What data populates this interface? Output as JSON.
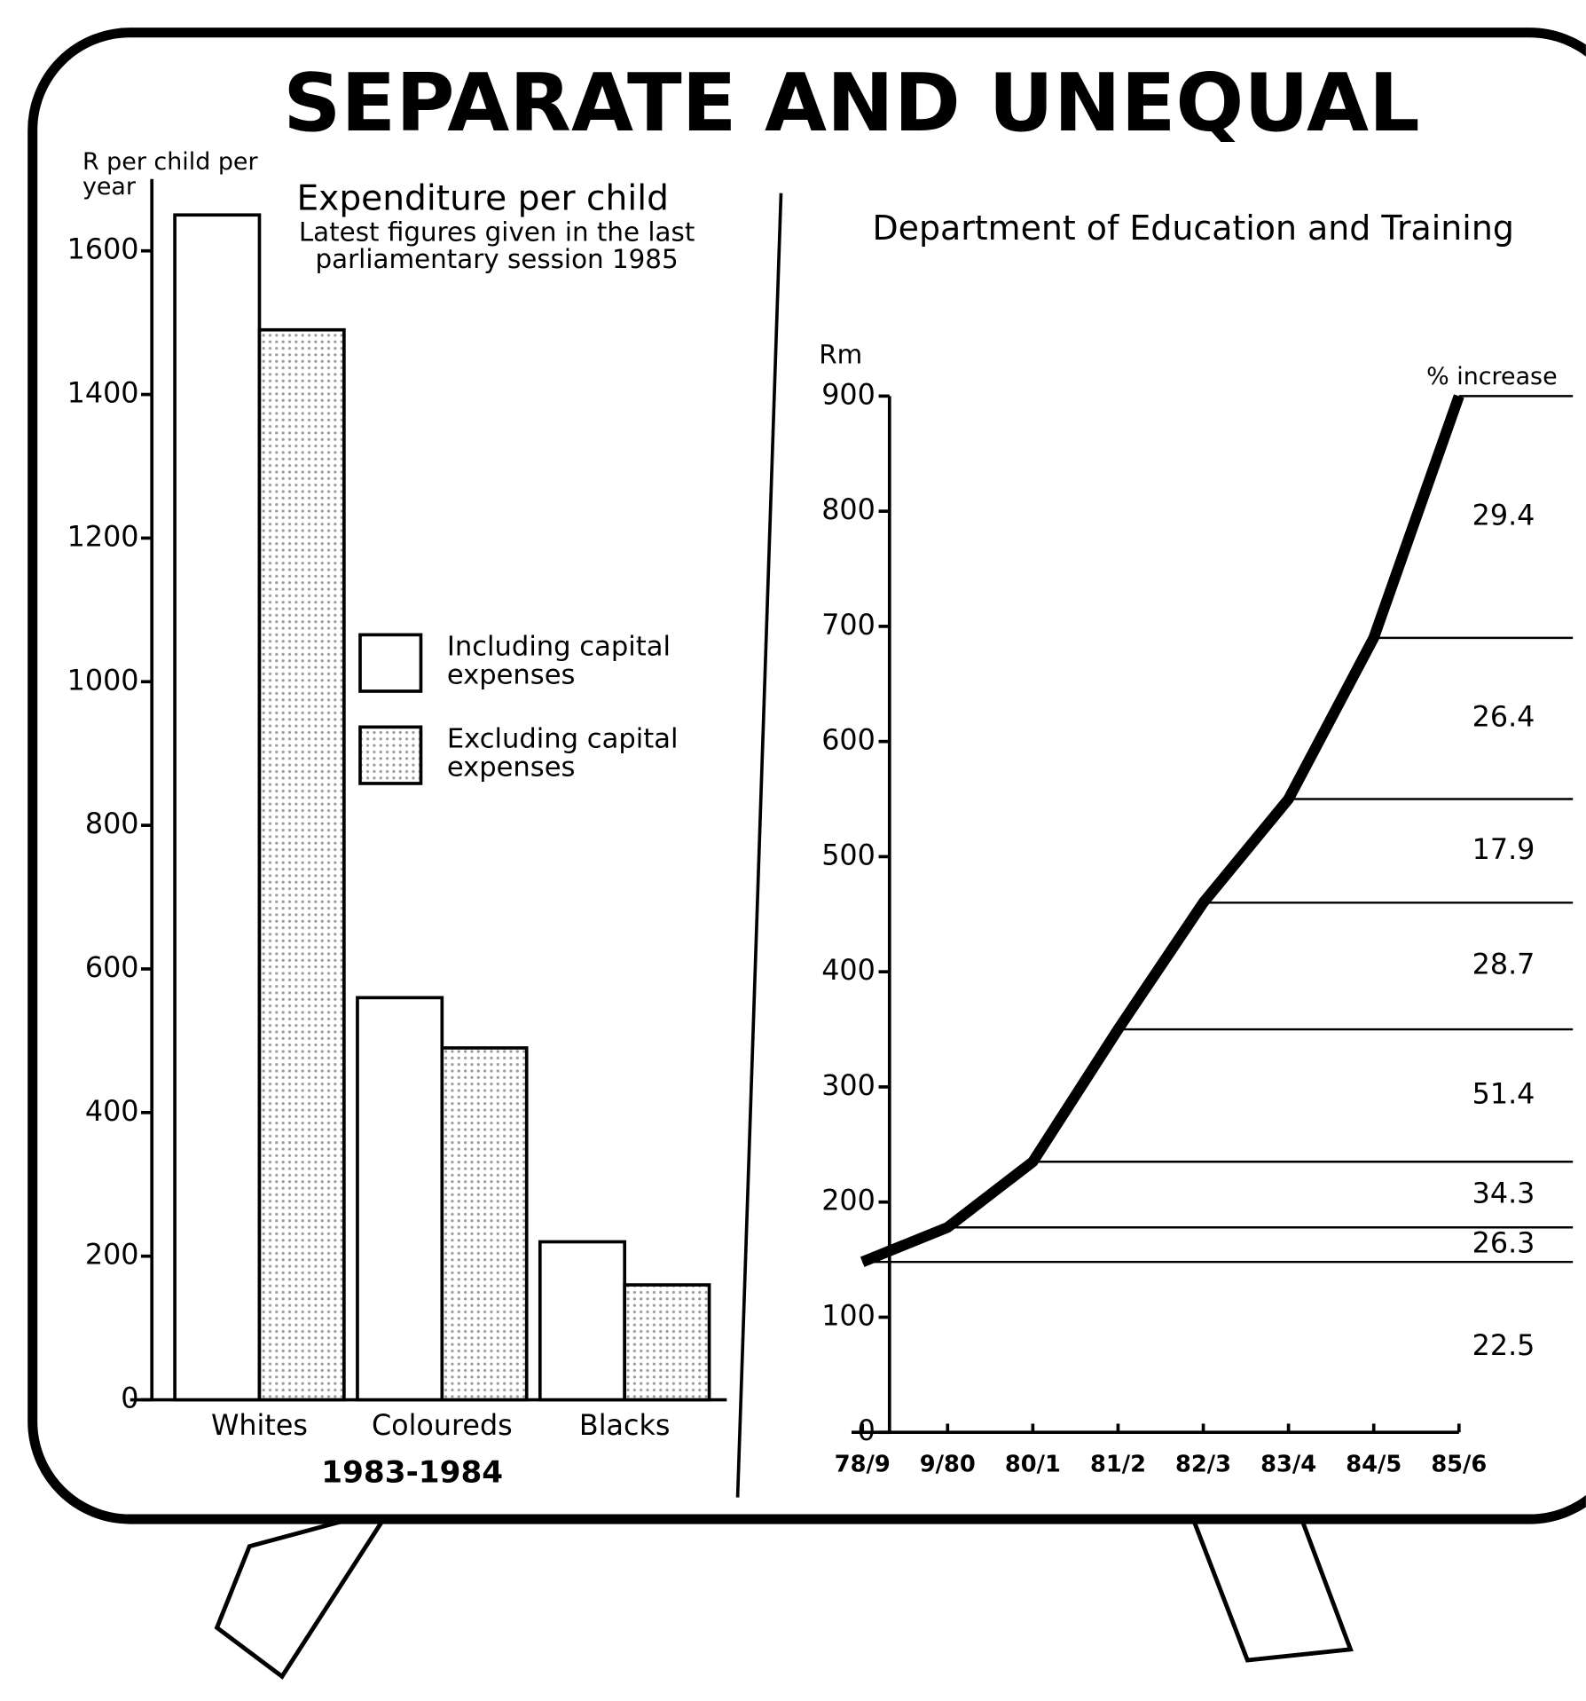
{
  "title": "SEPARATE AND UNEQUAL",
  "chart_data": [
    {
      "type": "bar",
      "title": "Expenditure per child",
      "subtitle": "Latest figures given in the last parliamentary session 1985",
      "y_label": "R per child per year",
      "x_label": "1983-1984",
      "categories": [
        "Whites",
        "Coloureds",
        "Blacks"
      ],
      "series": [
        {
          "name": "Including capital expenses",
          "color": "#ffffff",
          "values": [
            1650,
            560,
            220
          ]
        },
        {
          "name": "Excluding capital expenses",
          "color": "#e2e2e2",
          "values": [
            1490,
            490,
            160
          ]
        }
      ],
      "ylim": [
        0,
        1700
      ],
      "yticks": [
        0,
        200,
        400,
        600,
        800,
        1000,
        1200,
        1400,
        1600
      ]
    },
    {
      "type": "line",
      "title": "Department of Education and Training",
      "y_label": "Rm",
      "categories": [
        "78/9",
        "9/80",
        "80/1",
        "81/2",
        "82/3",
        "83/4",
        "84/5",
        "85/6"
      ],
      "series": [
        {
          "color": "#000000",
          "values": [
            148,
            178,
            235,
            350,
            460,
            550,
            690,
            900
          ]
        }
      ],
      "ylim": [
        0,
        900
      ],
      "yticks": [
        0,
        100,
        200,
        300,
        400,
        500,
        600,
        700,
        800,
        900
      ],
      "increase_title": "% increase",
      "increase_labels": [
        22.5,
        26.3,
        34.3,
        51.4,
        28.7,
        17.9,
        26.4,
        29.4
      ]
    }
  ]
}
